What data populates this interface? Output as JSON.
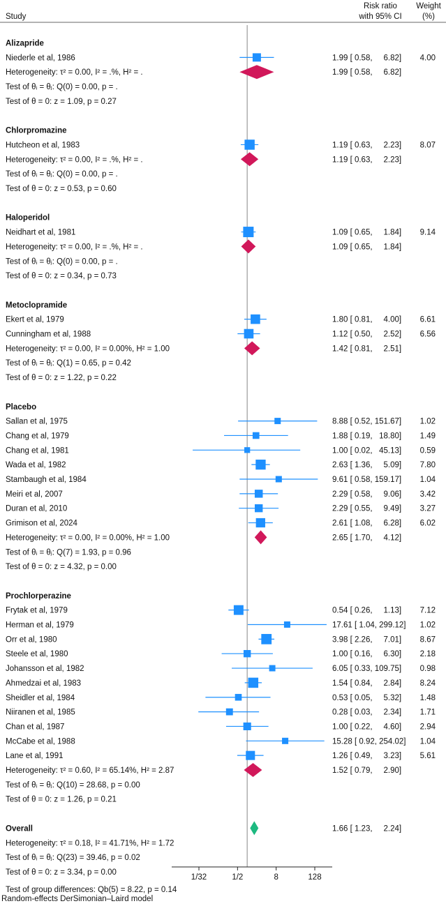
{
  "chart_data": {
    "type": "forest",
    "header": {
      "study": "Study",
      "ratio_line1": "Risk ratio",
      "ratio_line2": "with 95% CI",
      "weight_line1": "Weight",
      "weight_line2": "(%)"
    },
    "null_value": 1,
    "x_scale": "log2",
    "x_ticks": [
      {
        "value": 0.03125,
        "label": "1/32"
      },
      {
        "value": 0.5,
        "label": "1/2"
      },
      {
        "value": 8,
        "label": "8"
      },
      {
        "value": 128,
        "label": "128"
      }
    ],
    "marker_color": "#1e90ff",
    "subgroup_diamond_color": "#d1185a",
    "overall_diamond_color": "#1db980",
    "groups": [
      {
        "name": "Alizapride",
        "studies": [
          {
            "label": "Niederle et al, 1986",
            "rr": 1.99,
            "lo": 0.58,
            "hi": 6.82,
            "ci_text": "1.99 [ 0.58,     6.82]",
            "weight": "4.00"
          }
        ],
        "pooled": {
          "rr": 1.99,
          "lo": 0.58,
          "hi": 6.82,
          "ci_text": "1.99 [ 0.58,     6.82]"
        },
        "heterogeneity": "Heterogeneity: τ² = 0.00, I² = .%, H² = .",
        "test_homogeneity": "Test of θᵢ = θⱼ: Q(0) = 0.00, p = .",
        "test_effect": "Test of θ = 0: z = 1.09, p = 0.27"
      },
      {
        "name": "Chlorpromazine",
        "studies": [
          {
            "label": "Hutcheon et al, 1983",
            "rr": 1.19,
            "lo": 0.63,
            "hi": 2.23,
            "ci_text": "1.19 [ 0.63,     2.23]",
            "weight": "8.07"
          }
        ],
        "pooled": {
          "rr": 1.19,
          "lo": 0.63,
          "hi": 2.23,
          "ci_text": "1.19 [ 0.63,     2.23]"
        },
        "heterogeneity": "Heterogeneity: τ² = 0.00, I² = .%, H² = .",
        "test_homogeneity": "Test of θᵢ = θⱼ: Q(0) = 0.00, p = .",
        "test_effect": "Test of θ = 0: z = 0.53, p = 0.60"
      },
      {
        "name": "Haloperidol",
        "studies": [
          {
            "label": "Neidhart et al, 1981",
            "rr": 1.09,
            "lo": 0.65,
            "hi": 1.84,
            "ci_text": "1.09 [ 0.65,     1.84]",
            "weight": "9.14"
          }
        ],
        "pooled": {
          "rr": 1.09,
          "lo": 0.65,
          "hi": 1.84,
          "ci_text": "1.09 [ 0.65,     1.84]"
        },
        "heterogeneity": "Heterogeneity: τ² = 0.00, I² = .%, H² = .",
        "test_homogeneity": "Test of θᵢ = θⱼ: Q(0) = 0.00, p = .",
        "test_effect": "Test of θ = 0: z = 0.34, p = 0.73"
      },
      {
        "name": "Metoclopramide",
        "studies": [
          {
            "label": "Ekert et al, 1979",
            "rr": 1.8,
            "lo": 0.81,
            "hi": 4.0,
            "ci_text": "1.80 [ 0.81,     4.00]",
            "weight": "6.61"
          },
          {
            "label": "Cunningham et al, 1988",
            "rr": 1.12,
            "lo": 0.5,
            "hi": 2.52,
            "ci_text": "1.12 [ 0.50,     2.52]",
            "weight": "6.56"
          }
        ],
        "pooled": {
          "rr": 1.42,
          "lo": 0.81,
          "hi": 2.51,
          "ci_text": "1.42 [ 0.81,     2.51]"
        },
        "heterogeneity": "Heterogeneity: τ² = 0.00, I² = 0.00%, H² = 1.00",
        "test_homogeneity": "Test of θᵢ = θⱼ: Q(1) = 0.65, p = 0.42",
        "test_effect": "Test of θ = 0: z = 1.22, p = 0.22"
      },
      {
        "name": "Placebo",
        "studies": [
          {
            "label": "Sallan et al, 1975",
            "rr": 8.88,
            "lo": 0.52,
            "hi": 151.67,
            "ci_text": "8.88 [ 0.52, 151.67]",
            "weight": "1.02"
          },
          {
            "label": "Chang et al, 1979",
            "rr": 1.88,
            "lo": 0.19,
            "hi": 18.8,
            "ci_text": "1.88 [ 0.19,   18.80]",
            "weight": "1.49"
          },
          {
            "label": "Chang et al, 1981",
            "rr": 1.0,
            "lo": 0.02,
            "hi": 45.13,
            "ci_text": "1.00 [ 0.02,   45.13]",
            "weight": "0.59"
          },
          {
            "label": "Wada et al, 1982",
            "rr": 2.63,
            "lo": 1.36,
            "hi": 5.09,
            "ci_text": "2.63 [ 1.36,     5.09]",
            "weight": "7.80"
          },
          {
            "label": "Stambaugh et al, 1984",
            "rr": 9.61,
            "lo": 0.58,
            "hi": 159.17,
            "ci_text": "9.61 [ 0.58, 159.17]",
            "weight": "1.04"
          },
          {
            "label": "Meiri et al, 2007",
            "rr": 2.29,
            "lo": 0.58,
            "hi": 9.06,
            "ci_text": "2.29 [ 0.58,     9.06]",
            "weight": "3.42"
          },
          {
            "label": "Duran et al, 2010",
            "rr": 2.29,
            "lo": 0.55,
            "hi": 9.49,
            "ci_text": "2.29 [ 0.55,     9.49]",
            "weight": "3.27"
          },
          {
            "label": "Grimison et al, 2024",
            "rr": 2.61,
            "lo": 1.08,
            "hi": 6.28,
            "ci_text": "2.61 [ 1.08,     6.28]",
            "weight": "6.02"
          }
        ],
        "pooled": {
          "rr": 2.65,
          "lo": 1.7,
          "hi": 4.12,
          "ci_text": "2.65 [ 1.70,     4.12]"
        },
        "heterogeneity": "Heterogeneity: τ² = 0.00, I² = 0.00%, H² = 1.00",
        "test_homogeneity": "Test of θᵢ = θⱼ: Q(7) = 1.93, p = 0.96",
        "test_effect": "Test of θ = 0: z = 4.32, p = 0.00"
      },
      {
        "name": "Prochlorperazine",
        "studies": [
          {
            "label": "Frytak et al, 1979",
            "rr": 0.54,
            "lo": 0.26,
            "hi": 1.13,
            "ci_text": "0.54 [ 0.26,     1.13]",
            "weight": "7.12"
          },
          {
            "label": "Herman et al, 1979",
            "rr": 17.61,
            "lo": 1.04,
            "hi": 299.12,
            "ci_text": "17.61 [ 1.04, 299.12]",
            "weight": "1.02"
          },
          {
            "label": "Orr et al, 1980",
            "rr": 3.98,
            "lo": 2.26,
            "hi": 7.01,
            "ci_text": "3.98 [ 2.26,     7.01]",
            "weight": "8.67"
          },
          {
            "label": "Steele et al, 1980",
            "rr": 1.0,
            "lo": 0.16,
            "hi": 6.3,
            "ci_text": "1.00 [ 0.16,     6.30]",
            "weight": "2.18"
          },
          {
            "label": "Johansson et al, 1982",
            "rr": 6.05,
            "lo": 0.33,
            "hi": 109.75,
            "ci_text": "6.05 [ 0.33, 109.75]",
            "weight": "0.98"
          },
          {
            "label": "Ahmedzai et al, 1983",
            "rr": 1.54,
            "lo": 0.84,
            "hi": 2.84,
            "ci_text": "1.54 [ 0.84,     2.84]",
            "weight": "8.24"
          },
          {
            "label": "Sheidler et al, 1984",
            "rr": 0.53,
            "lo": 0.05,
            "hi": 5.32,
            "ci_text": "0.53 [ 0.05,     5.32]",
            "weight": "1.48"
          },
          {
            "label": "Niiranen et al, 1985",
            "rr": 0.28,
            "lo": 0.03,
            "hi": 2.34,
            "ci_text": "0.28 [ 0.03,     2.34]",
            "weight": "1.71"
          },
          {
            "label": "Chan et al, 1987",
            "rr": 1.0,
            "lo": 0.22,
            "hi": 4.6,
            "ci_text": "1.00 [ 0.22,     4.60]",
            "weight": "2.94"
          },
          {
            "label": "McCabe et al, 1988",
            "rr": 15.28,
            "lo": 0.92,
            "hi": 254.02,
            "ci_text": "15.28 [ 0.92, 254.02]",
            "weight": "1.04"
          },
          {
            "label": "Lane et al, 1991",
            "rr": 1.26,
            "lo": 0.49,
            "hi": 3.23,
            "ci_text": "1.26 [ 0.49,     3.23]",
            "weight": "5.61"
          }
        ],
        "pooled": {
          "rr": 1.52,
          "lo": 0.79,
          "hi": 2.9,
          "ci_text": "1.52 [ 0.79,     2.90]"
        },
        "heterogeneity": "Heterogeneity: τ² = 0.60, I² = 65.14%, H² = 2.87",
        "test_homogeneity": "Test of θᵢ = θⱼ: Q(10) = 28.68, p = 0.00",
        "test_effect": "Test of θ = 0: z = 1.26, p = 0.21"
      }
    ],
    "overall": {
      "name": "Overall",
      "rr": 1.66,
      "lo": 1.23,
      "hi": 2.24,
      "ci_text": "1.66 [ 1.23,     2.24]",
      "heterogeneity": "Heterogeneity: τ² = 0.18, I² = 41.71%, H² = 1.72",
      "test_homogeneity": "Test of θᵢ = θⱼ: Q(23) = 39.46, p = 0.02",
      "test_effect": "Test of θ = 0: z = 3.34, p = 0.00",
      "group_differences": "Test of group differences: Qb(5) = 8.22, p = 0.14"
    },
    "note": "Random-effects DerSimonian–Laird model"
  }
}
